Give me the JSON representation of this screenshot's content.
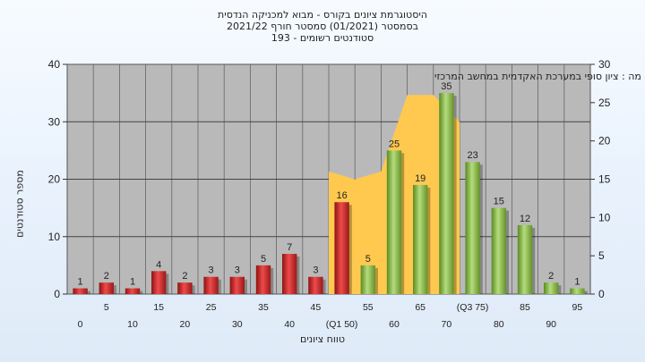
{
  "title": {
    "line1": "היסטוגרמת ציונים בקורס - מבוא למכניקה הנדסית",
    "line2": "בסמסטר  (01/2021)  סמסטר חורף 2021/22",
    "line3": "סטודנטים רשומים - 193"
  },
  "chart_data": {
    "type": "bar",
    "annotation": "בחשו מה : ציון סופי במערכת האקדמית במחשב המרכזי",
    "xlabel": "טווח ציונים",
    "ylabel": "מספר סטודנטים",
    "ylim": [
      0,
      40
    ],
    "y_ticks": [
      0,
      10,
      20,
      30,
      40
    ],
    "y2lim": [
      0,
      30
    ],
    "y2_ticks": [
      0,
      5,
      10,
      15,
      20,
      25,
      30
    ],
    "grid": true,
    "categories": [
      "0",
      "5",
      "10",
      "15",
      "20",
      "25",
      "30",
      "35",
      "40",
      "45",
      "(Q1 50)",
      "55",
      "60",
      "65",
      "70",
      "(Q3 75)",
      "80",
      "85",
      "90",
      "95"
    ],
    "series": [
      {
        "values": [
          1,
          2,
          1,
          4,
          2,
          3,
          3,
          5,
          7,
          3,
          16,
          5,
          25,
          19,
          35,
          23,
          15,
          12,
          2,
          1
        ]
      }
    ],
    "bar_colors_by_index": [
      "red",
      "red",
      "red",
      "red",
      "red",
      "red",
      "red",
      "red",
      "red",
      "red",
      "red",
      "green",
      "green",
      "green",
      "green",
      "green",
      "green",
      "green",
      "green",
      "green"
    ],
    "area_series": {
      "x_index": [
        10,
        11,
        12,
        13,
        14,
        15
      ],
      "values": [
        16,
        15,
        16,
        26,
        26,
        22.5
      ]
    },
    "colors": {
      "red": "#d42a2a",
      "green": "#8cbc4a",
      "area": "#ffc94f",
      "plot_bg": "#b9b9b9"
    }
  }
}
